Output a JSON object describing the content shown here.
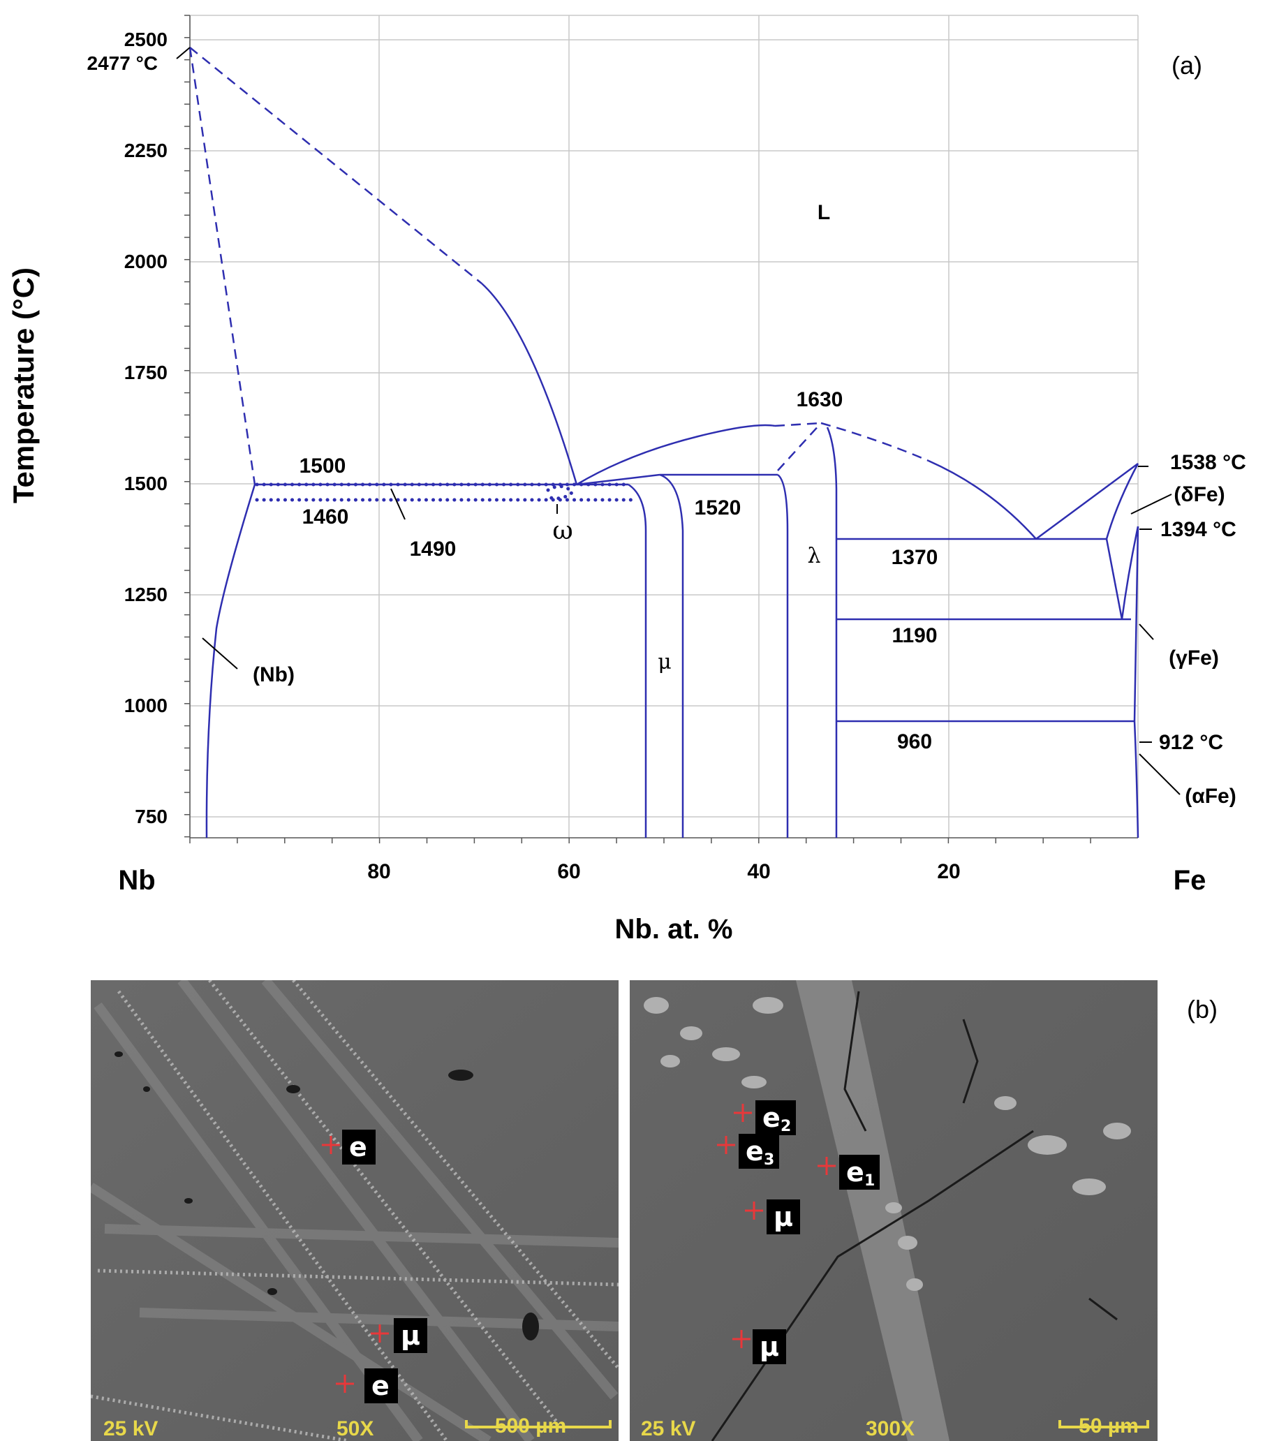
{
  "panel_a": {
    "panel_label": "(a)",
    "axis": {
      "ylabel": "Temperature (°C)",
      "xlabel": "Nb. at. %",
      "ylim": [
        700,
        2550
      ],
      "xlim": [
        100,
        0
      ],
      "y_ticks": [
        "2500",
        "2250",
        "2000",
        "1750",
        "1500",
        "1250",
        "1000",
        "750"
      ],
      "x_ticks": [
        "80",
        "60",
        "40",
        "20"
      ],
      "left_end_label": "Nb",
      "right_end_label": "Fe"
    },
    "point_labels": {
      "nb_melting": "2477 °C",
      "fe_melting": "1538 °C",
      "fe_1394": "1394 °C",
      "fe_912": "912 °C"
    },
    "temperature_labels": {
      "t1630": "1630",
      "t1500": "1500",
      "t1460": "1460",
      "t1490": "1490",
      "t1520": "1520",
      "t1370": "1370",
      "t1190": "1190",
      "t960": "960"
    },
    "phase_labels": {
      "liquid": "L",
      "nb_solid": "(Nb)",
      "delta_fe": "(δFe)",
      "gamma_fe": "(γFe)",
      "alpha_fe": "(αFe)",
      "mu": "μ",
      "lambda": "λ",
      "omega": "ω"
    },
    "line_color": "#2e2eb0"
  },
  "panel_b": {
    "panel_label": "(b)",
    "left_image": {
      "info": [
        "25 kV",
        "50X",
        "500 µm"
      ],
      "markers": [
        {
          "label": "e",
          "sub": ""
        },
        {
          "label": "μ",
          "sub": ""
        },
        {
          "label": "e",
          "sub": ""
        }
      ]
    },
    "right_image": {
      "info": [
        "25 kV",
        "300X",
        "50 µm"
      ],
      "markers": [
        {
          "label": "e",
          "sub": "2"
        },
        {
          "label": "e",
          "sub": "3"
        },
        {
          "label": "e",
          "sub": "1"
        },
        {
          "label": "μ",
          "sub": ""
        },
        {
          "label": "μ",
          "sub": ""
        }
      ]
    }
  }
}
